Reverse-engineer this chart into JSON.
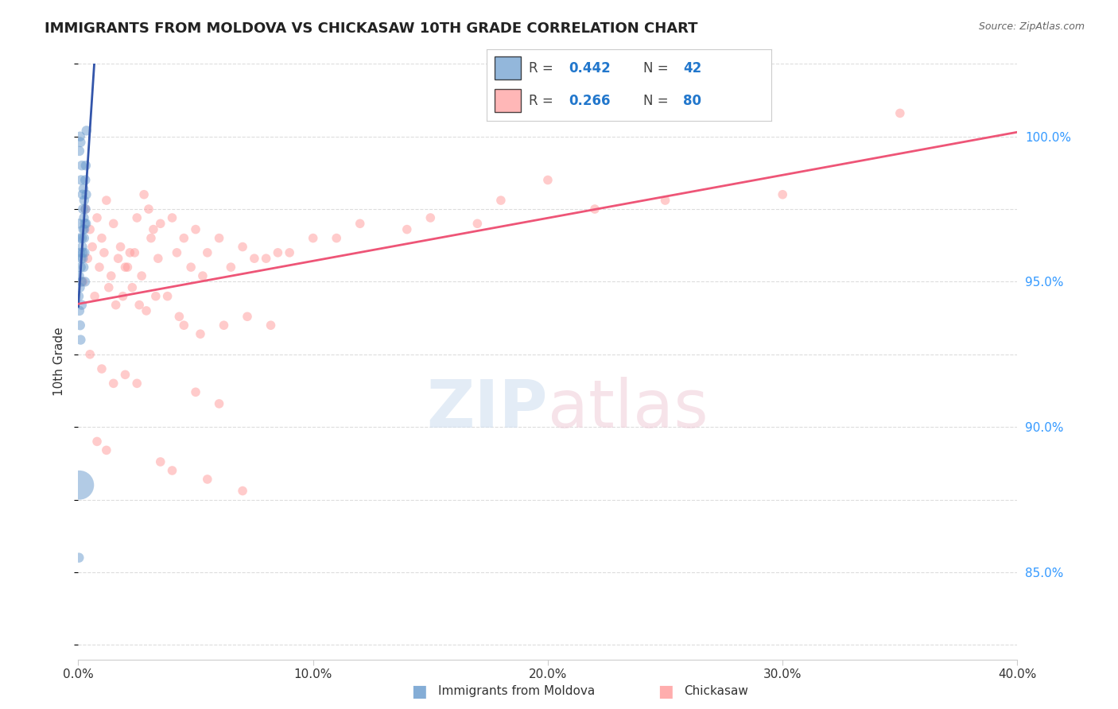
{
  "title": "IMMIGRANTS FROM MOLDOVA VS CHICKASAW 10TH GRADE CORRELATION CHART",
  "source": "Source: ZipAtlas.com",
  "ylabel": "10th Grade",
  "ylabel_right_ticks": [
    85.0,
    90.0,
    95.0,
    100.0
  ],
  "ylabel_right_labels": [
    "85.0%",
    "90.0%",
    "95.0%",
    "100.0%"
  ],
  "x_min": 0.0,
  "x_max": 40.0,
  "y_min": 82.0,
  "y_max": 102.5,
  "blue_R": 0.442,
  "blue_N": 42,
  "pink_R": 0.266,
  "pink_N": 80,
  "blue_color": "#6699cc",
  "pink_color": "#ff9999",
  "blue_line_color": "#3355aa",
  "pink_line_color": "#ee5577",
  "blue_scatter_x": [
    0.05,
    0.08,
    0.1,
    0.12,
    0.15,
    0.18,
    0.2,
    0.22,
    0.25,
    0.28,
    0.3,
    0.32,
    0.35,
    0.03,
    0.06,
    0.09,
    0.11,
    0.14,
    0.17,
    0.21,
    0.24,
    0.27,
    0.31,
    0.34,
    0.04,
    0.07,
    0.13,
    0.16,
    0.19,
    0.23,
    0.26,
    0.29,
    0.33,
    0.02,
    0.05,
    0.08,
    0.1,
    0.15,
    0.2,
    0.25,
    0.05,
    0.03
  ],
  "blue_scatter_y": [
    99.5,
    100.0,
    99.8,
    98.5,
    99.0,
    98.0,
    97.5,
    98.2,
    97.8,
    97.0,
    98.5,
    99.0,
    100.2,
    97.0,
    96.5,
    96.0,
    95.5,
    95.0,
    96.2,
    96.8,
    97.2,
    96.0,
    97.5,
    98.0,
    95.2,
    94.8,
    95.8,
    96.5,
    96.0,
    95.5,
    96.8,
    95.0,
    97.0,
    94.5,
    94.0,
    93.5,
    93.0,
    94.2,
    95.8,
    96.5,
    88.0,
    85.5
  ],
  "blue_scatter_size": [
    80,
    80,
    80,
    80,
    80,
    80,
    80,
    80,
    80,
    80,
    80,
    80,
    80,
    80,
    80,
    80,
    80,
    80,
    80,
    80,
    80,
    80,
    80,
    80,
    80,
    80,
    80,
    80,
    80,
    80,
    80,
    80,
    80,
    80,
    80,
    80,
    80,
    80,
    80,
    80,
    700,
    80
  ],
  "pink_scatter_x": [
    0.3,
    0.5,
    0.8,
    1.0,
    1.2,
    1.5,
    1.8,
    2.0,
    2.2,
    2.5,
    2.8,
    3.0,
    3.2,
    3.5,
    4.0,
    4.5,
    5.0,
    5.5,
    6.0,
    7.0,
    8.0,
    9.0,
    10.0,
    12.0,
    15.0,
    18.0,
    20.0,
    0.4,
    0.6,
    0.9,
    1.1,
    1.4,
    1.7,
    2.1,
    2.4,
    2.7,
    3.1,
    3.4,
    4.2,
    4.8,
    5.3,
    6.5,
    7.5,
    8.5,
    11.0,
    14.0,
    17.0,
    22.0,
    25.0,
    30.0,
    35.0,
    0.2,
    0.7,
    1.3,
    1.6,
    1.9,
    2.3,
    2.6,
    2.9,
    3.3,
    4.5,
    5.2,
    6.2,
    7.2,
    8.2,
    3.8,
    4.3,
    0.5,
    1.0,
    1.5,
    2.0,
    2.5,
    5.0,
    6.0,
    0.8,
    1.2,
    3.5,
    4.0,
    5.5,
    7.0
  ],
  "pink_scatter_y": [
    97.5,
    96.8,
    97.2,
    96.5,
    97.8,
    97.0,
    96.2,
    95.5,
    96.0,
    97.2,
    98.0,
    97.5,
    96.8,
    97.0,
    97.2,
    96.5,
    96.8,
    96.0,
    96.5,
    96.2,
    95.8,
    96.0,
    96.5,
    97.0,
    97.2,
    97.8,
    98.5,
    95.8,
    96.2,
    95.5,
    96.0,
    95.2,
    95.8,
    95.5,
    96.0,
    95.2,
    96.5,
    95.8,
    96.0,
    95.5,
    95.2,
    95.5,
    95.8,
    96.0,
    96.5,
    96.8,
    97.0,
    97.5,
    97.8,
    98.0,
    100.8,
    95.0,
    94.5,
    94.8,
    94.2,
    94.5,
    94.8,
    94.2,
    94.0,
    94.5,
    93.5,
    93.2,
    93.5,
    93.8,
    93.5,
    94.5,
    93.8,
    92.5,
    92.0,
    91.5,
    91.8,
    91.5,
    91.2,
    90.8,
    89.5,
    89.2,
    88.8,
    88.5,
    88.2,
    87.8
  ],
  "pink_scatter_size": [
    70,
    70,
    70,
    70,
    70,
    70,
    70,
    70,
    70,
    70,
    70,
    70,
    70,
    70,
    70,
    70,
    70,
    70,
    70,
    70,
    70,
    70,
    70,
    70,
    70,
    70,
    70,
    70,
    70,
    70,
    70,
    70,
    70,
    70,
    70,
    70,
    70,
    70,
    70,
    70,
    70,
    70,
    70,
    70,
    70,
    70,
    70,
    70,
    70,
    70,
    70,
    70,
    70,
    70,
    70,
    70,
    70,
    70,
    70,
    70,
    70,
    70,
    70,
    70,
    70,
    70,
    70,
    70,
    70,
    70,
    70,
    70,
    70,
    70,
    70,
    70,
    70,
    70,
    70,
    70
  ],
  "background_color": "#ffffff",
  "grid_color": "#dddddd"
}
